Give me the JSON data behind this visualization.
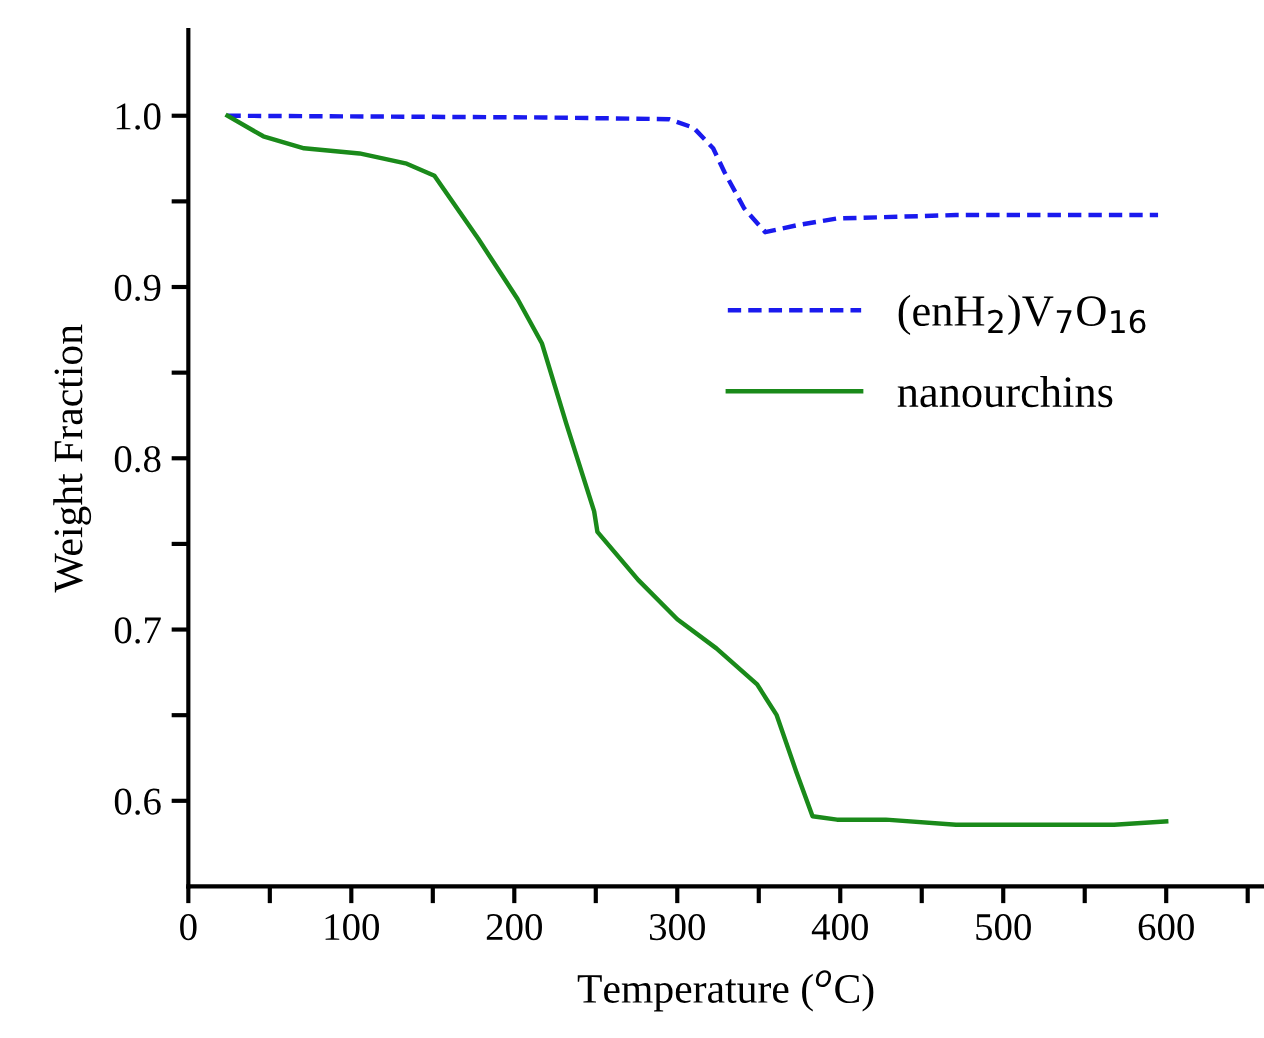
{
  "chart_data": {
    "type": "line",
    "xlabel": "Temperature ($^{o}$C)",
    "ylabel": "Weight Fraction",
    "xlim": [
      0,
      660
    ],
    "ylim": [
      0.55,
      1.05
    ],
    "xticks": [
      0,
      {
        "value": 50,
        "label": null
      },
      100,
      {
        "value": 150,
        "label": null
      },
      200,
      {
        "value": 250,
        "label": null
      },
      300,
      {
        "value": 350,
        "label": null
      },
      400,
      {
        "value": 450,
        "label": null
      },
      500,
      {
        "value": 550,
        "label": null
      },
      600,
      {
        "value": 650,
        "label": null
      }
    ],
    "yticks": [
      {
        "value": 0.6,
        "label": "0.6"
      },
      {
        "value": 0.65,
        "label": null
      },
      {
        "value": 0.7,
        "label": "0.7"
      },
      {
        "value": 0.75,
        "label": null
      },
      {
        "value": 0.8,
        "label": "0.8"
      },
      {
        "value": 0.85,
        "label": null
      },
      {
        "value": 0.9,
        "label": "0.9"
      },
      {
        "value": 0.95,
        "label": null
      },
      {
        "value": 1.0,
        "label": "1.0"
      }
    ],
    "legend": "center right",
    "grid": false,
    "series": [
      {
        "name": "(enH$_{2}$)V$_{7}$O$_{16}$",
        "color": "#1a1aee",
        "line_style": "dashed",
        "x": [
          24,
          218,
          295,
          310,
          322,
          329,
          341,
          354,
          373,
          398,
          471,
          595
        ],
        "values": [
          1.0,
          0.999,
          0.998,
          0.993,
          0.981,
          0.967,
          0.946,
          0.932,
          0.936,
          0.94,
          0.942,
          0.942
        ]
      },
      {
        "name": "nanourchins",
        "color": "#1a8a1a",
        "line_style": "solid",
        "x": [
          24,
          46,
          71,
          105,
          134,
          151,
          178,
          202,
          217,
          232,
          249,
          251,
          276,
          300,
          324,
          349,
          361,
          373,
          383,
          398,
          428,
          471,
          520,
          568,
          600
        ],
        "values": [
          1.0,
          0.988,
          0.981,
          0.978,
          0.972,
          0.965,
          0.928,
          0.893,
          0.867,
          0.82,
          0.769,
          0.757,
          0.729,
          0.706,
          0.689,
          0.668,
          0.65,
          0.617,
          0.591,
          0.589,
          0.589,
          0.586,
          0.586,
          0.586,
          0.588
        ]
      }
    ]
  }
}
